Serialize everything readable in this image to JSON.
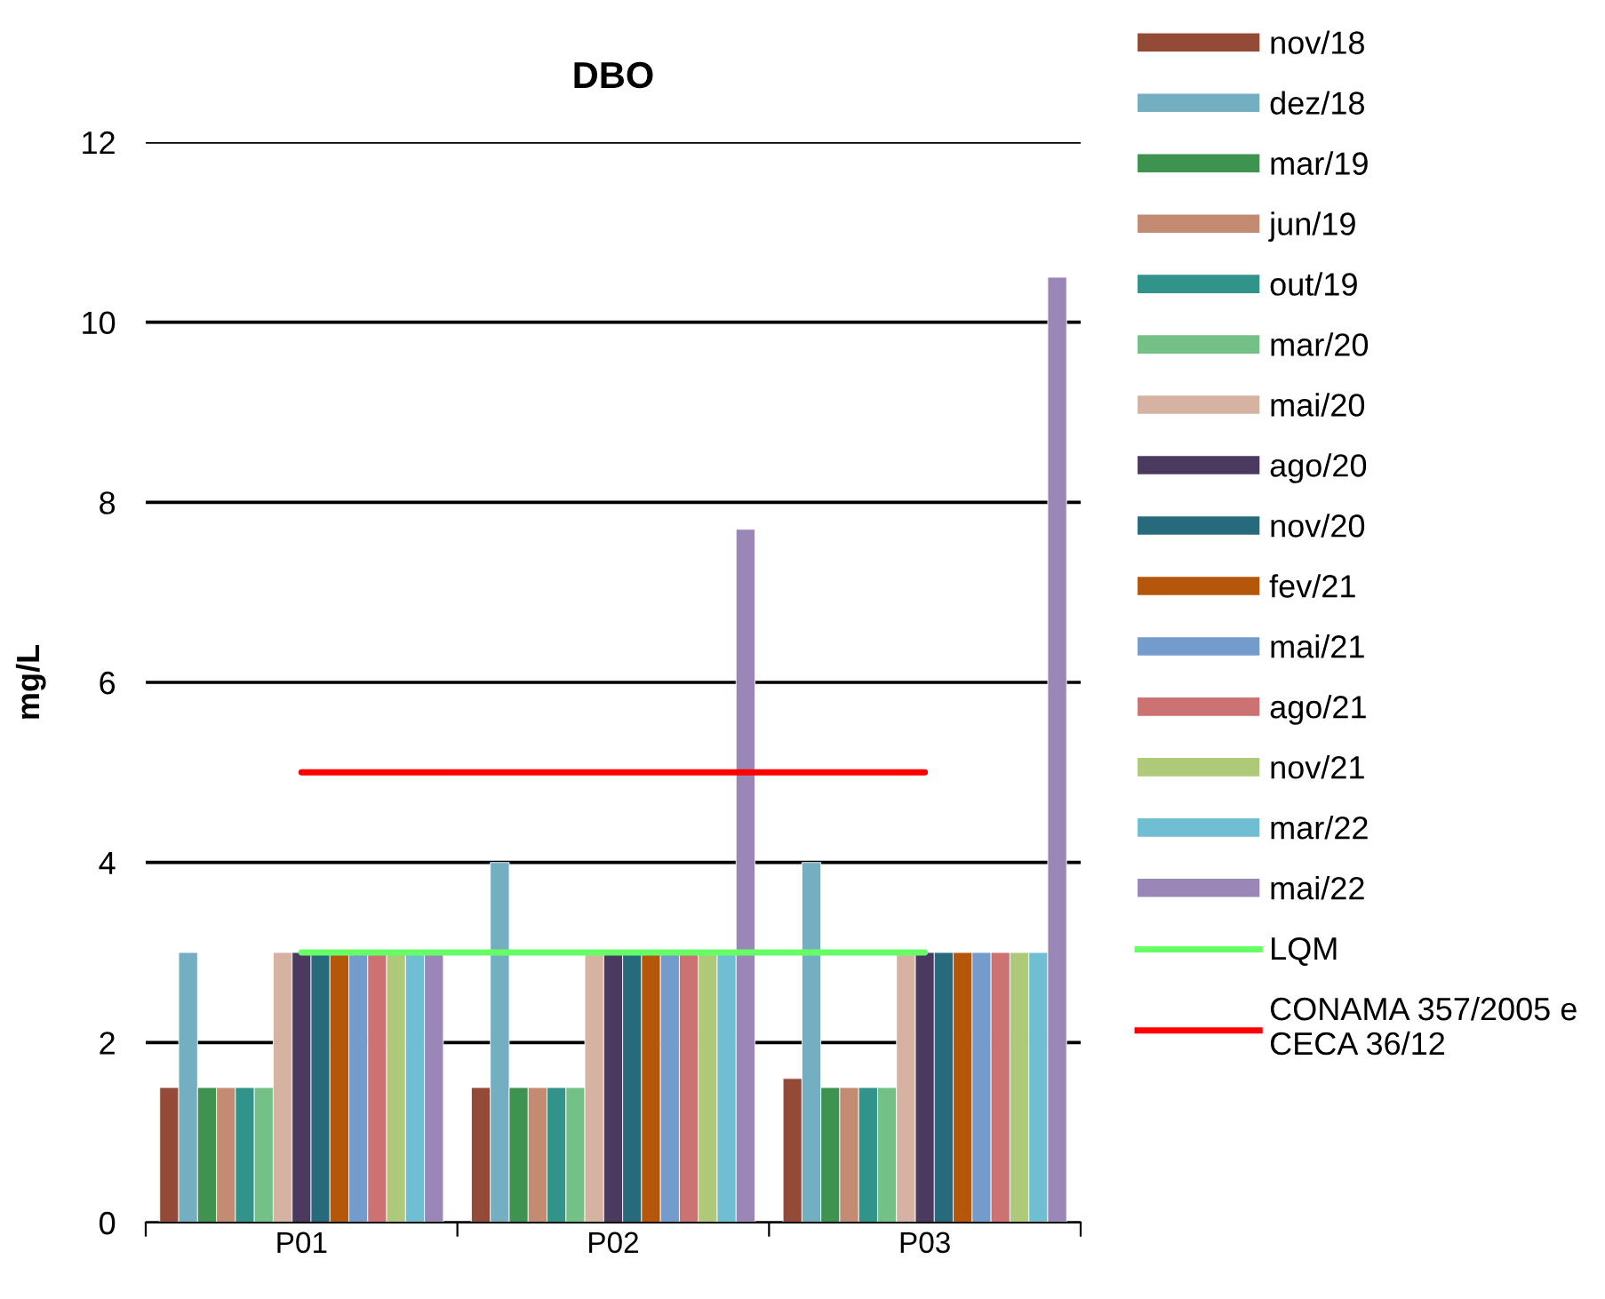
{
  "chart_data": {
    "type": "bar",
    "title": "DBO",
    "ylabel": "mg/L",
    "categories": [
      "P01",
      "P02",
      "P03"
    ],
    "series": [
      {
        "name": "nov/18",
        "color": "#934a36",
        "values": [
          1.5,
          1.5,
          1.6
        ]
      },
      {
        "name": "dez/18",
        "color": "#74afc1",
        "values": [
          3,
          4,
          4
        ]
      },
      {
        "name": "mar/19",
        "color": "#3e9350",
        "values": [
          1.5,
          1.5,
          1.5
        ]
      },
      {
        "name": "jun/19",
        "color": "#c38b72",
        "values": [
          1.5,
          1.5,
          1.5
        ]
      },
      {
        "name": "out/19",
        "color": "#31938a",
        "values": [
          1.5,
          1.5,
          1.5
        ]
      },
      {
        "name": "mar/20",
        "color": "#73c186",
        "values": [
          1.5,
          1.5,
          1.5
        ]
      },
      {
        "name": "mai/20",
        "color": "#d6b2a2",
        "values": [
          3,
          3,
          3
        ]
      },
      {
        "name": "ago/20",
        "color": "#4b3a60",
        "values": [
          3,
          3,
          3
        ]
      },
      {
        "name": "nov/20",
        "color": "#266a7b",
        "values": [
          3,
          3,
          3
        ]
      },
      {
        "name": "fev/21",
        "color": "#b5570a",
        "values": [
          3,
          3,
          3
        ]
      },
      {
        "name": "mai/21",
        "color": "#739bcb",
        "values": [
          3,
          3,
          3
        ]
      },
      {
        "name": "ago/21",
        "color": "#cd7272",
        "values": [
          3,
          3,
          3
        ]
      },
      {
        "name": "nov/21",
        "color": "#afc97b",
        "values": [
          3,
          3,
          3
        ]
      },
      {
        "name": "mar/22",
        "color": "#6fbed2",
        "values": [
          3,
          3,
          3
        ]
      },
      {
        "name": "mai/22",
        "color": "#9b86b8",
        "values": [
          3,
          7.7,
          10.5
        ]
      },
      {
        "name": "LQM",
        "type": "line",
        "color": "#66ff66",
        "values": [
          3,
          3,
          3
        ]
      },
      {
        "name": "CONAMA 357/2005 e\nCECA 36/12",
        "type": "line",
        "color": "#ff0000",
        "values": [
          5,
          5,
          5
        ]
      }
    ],
    "ylim": [
      0,
      12
    ],
    "yticks": [
      0,
      2,
      4,
      6,
      8,
      10,
      12
    ],
    "grid": "y",
    "legend": "right",
    "marker": "none",
    "line_style": "solid"
  }
}
